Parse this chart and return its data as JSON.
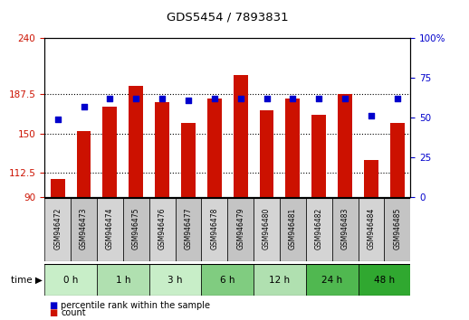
{
  "title": "GDS5454 / 7893831",
  "samples": [
    "GSM946472",
    "GSM946473",
    "GSM946474",
    "GSM946475",
    "GSM946476",
    "GSM946477",
    "GSM946478",
    "GSM946479",
    "GSM946480",
    "GSM946481",
    "GSM946482",
    "GSM946483",
    "GSM946484",
    "GSM946485"
  ],
  "count_values": [
    107,
    152,
    175,
    195,
    180,
    160,
    183,
    205,
    172,
    183,
    168,
    187,
    125,
    160
  ],
  "percentile_values": [
    49,
    57,
    62,
    62,
    62,
    61,
    62,
    62,
    62,
    62,
    62,
    62,
    51,
    62
  ],
  "time_groups": [
    {
      "label": "0 h",
      "start": 0,
      "end": 2,
      "color": "#c8eec8"
    },
    {
      "label": "1 h",
      "start": 2,
      "end": 4,
      "color": "#b0e0b0"
    },
    {
      "label": "3 h",
      "start": 4,
      "end": 6,
      "color": "#c8eec8"
    },
    {
      "label": "6 h",
      "start": 6,
      "end": 8,
      "color": "#80cc80"
    },
    {
      "label": "12 h",
      "start": 8,
      "end": 10,
      "color": "#b0e0b0"
    },
    {
      "label": "24 h",
      "start": 10,
      "end": 12,
      "color": "#50b850"
    },
    {
      "label": "48 h",
      "start": 12,
      "end": 14,
      "color": "#30a830"
    }
  ],
  "ylim_left": [
    90,
    240
  ],
  "ylim_right": [
    0,
    100
  ],
  "yticks_left": [
    90,
    112.5,
    150,
    187.5,
    240
  ],
  "yticks_right": [
    0,
    25,
    50,
    75,
    100
  ],
  "bar_color": "#cc1100",
  "dot_color": "#0000cc",
  "bar_width": 0.55,
  "background_color": "#ffffff",
  "left_axis_color": "#cc1100",
  "right_axis_color": "#0000cc",
  "sample_cell_colors": [
    "#d4d4d4",
    "#c4c4c4",
    "#d4d4d4",
    "#c4c4c4",
    "#d4d4d4",
    "#c4c4c4",
    "#d4d4d4",
    "#c4c4c4",
    "#d4d4d4",
    "#c4c4c4",
    "#d4d4d4",
    "#c4c4c4",
    "#d4d4d4",
    "#c4c4c4"
  ]
}
